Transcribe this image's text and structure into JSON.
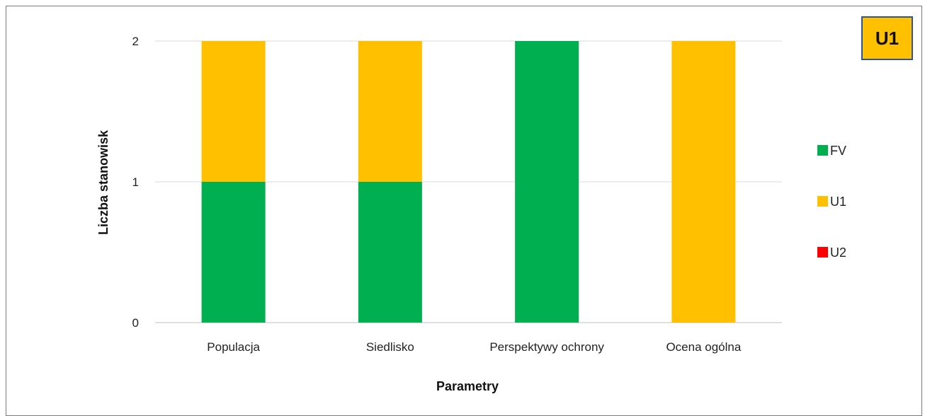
{
  "badge": {
    "label": "U1",
    "background": "#ffc000",
    "border": "#2f5597"
  },
  "chart_data": {
    "type": "bar",
    "stacked": true,
    "categories": [
      "Populacja",
      "Siedlisko",
      "Perspektywy ochrony",
      "Ocena ogólna"
    ],
    "series": [
      {
        "name": "FV",
        "color": "#00b050",
        "values": [
          1,
          1,
          2,
          0
        ]
      },
      {
        "name": "U1",
        "color": "#ffc000",
        "values": [
          1,
          1,
          0,
          2
        ]
      },
      {
        "name": "U2",
        "color": "#ff0000",
        "values": [
          0,
          0,
          0,
          0
        ]
      }
    ],
    "xlabel": "Parametry",
    "ylabel": "Liczba stanowisk",
    "ylim": [
      0,
      2
    ],
    "yticks": [
      0,
      1,
      2
    ],
    "grid": true,
    "legend_position": "right"
  }
}
